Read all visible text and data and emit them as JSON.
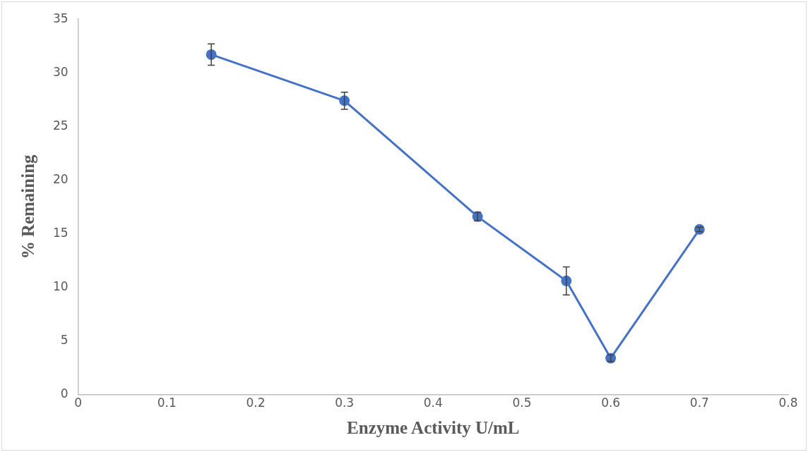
{
  "chart_data": {
    "type": "line",
    "xlabel": "Enzyme Activity U/mL",
    "ylabel": "% Remaining",
    "x": [
      0.15,
      0.3,
      0.45,
      0.55,
      0.6,
      0.7
    ],
    "series": [
      {
        "color": "#4472c4",
        "values": [
          31.7,
          27.4,
          16.6,
          10.6,
          3.4,
          15.4
        ],
        "errors": [
          1,
          0.8,
          0.4,
          1.3,
          0.3,
          0.2
        ]
      }
    ],
    "xlim": [
      0,
      0.8
    ],
    "xticks": [
      0,
      0.1,
      0.2,
      0.3,
      0.4,
      0.5,
      0.6,
      0.7,
      0.8
    ],
    "ylim": [
      0,
      35
    ],
    "yticks": [
      0,
      5,
      10,
      15,
      20,
      25,
      30,
      35
    ],
    "grid": false,
    "legend": false,
    "marker": "circle",
    "line_style": "solid"
  }
}
